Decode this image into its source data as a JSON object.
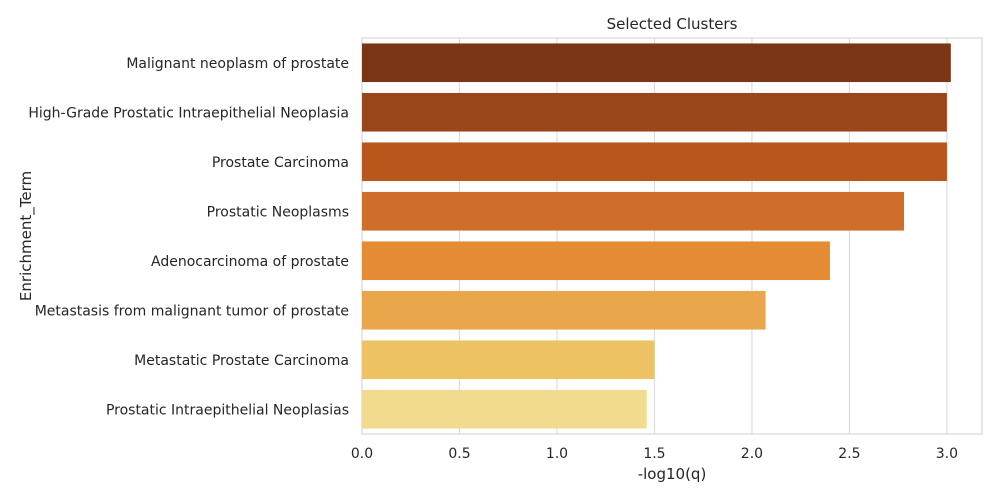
{
  "chart_data": {
    "type": "bar",
    "orientation": "horizontal",
    "title": "Selected Clusters",
    "xlabel": "-log10(q)",
    "ylabel": "Enrichment_Term",
    "xlim": [
      0,
      3.18
    ],
    "xticks": [
      0.0,
      0.5,
      1.0,
      1.5,
      2.0,
      2.5,
      3.0
    ],
    "xtick_labels": [
      "0.0",
      "0.5",
      "1.0",
      "1.5",
      "2.0",
      "2.5",
      "3.0"
    ],
    "grid": "x-axis vertical lines",
    "categories": [
      "Malignant neoplasm of prostate",
      "High-Grade Prostatic Intraepithelial Neoplasia",
      "Prostate Carcinoma",
      "Prostatic Neoplasms",
      "Adenocarcinoma of prostate",
      "Metastasis from malignant tumor of prostate",
      "Metastatic Prostate Carcinoma",
      "Prostatic Intraepithelial Neoplasias"
    ],
    "values": [
      3.02,
      3.0,
      3.0,
      2.78,
      2.4,
      2.07,
      1.5,
      1.46
    ],
    "colors": [
      "#7a3514",
      "#9a461b",
      "#b8561b",
      "#cf6e2b",
      "#e58b33",
      "#eaa64b",
      "#edc262",
      "#f2da8f"
    ]
  }
}
